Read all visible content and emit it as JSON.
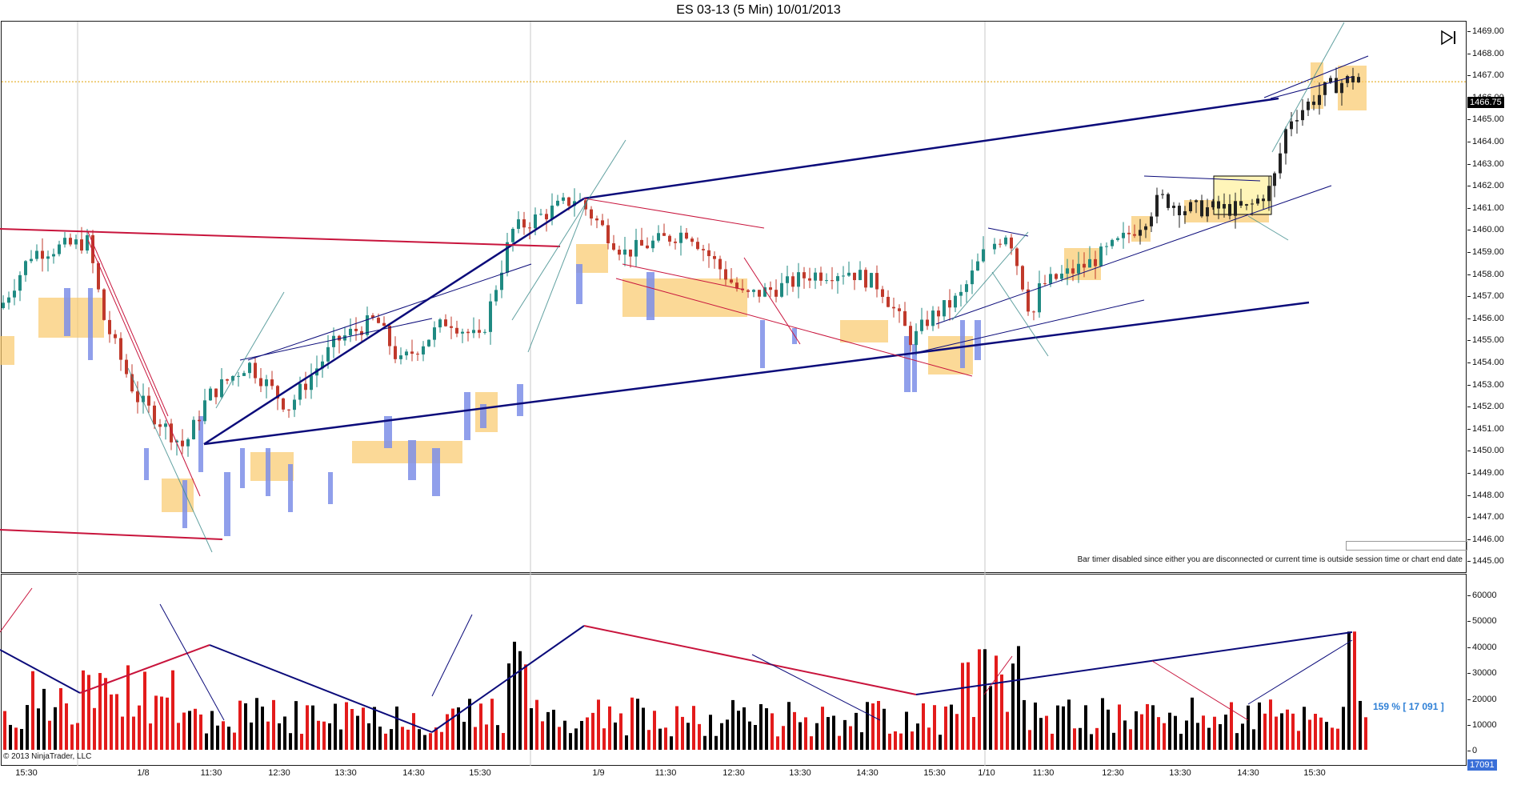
{
  "title": "ES 03-13 (5 Min)  10/01/2013",
  "price_axis": {
    "ticks": [
      "1469.00",
      "1468.00",
      "1467.00",
      "1466.00",
      "1465.00",
      "1464.00",
      "1463.00",
      "1462.00",
      "1461.00",
      "1460.00",
      "1459.00",
      "1458.00",
      "1457.00",
      "1456.00",
      "1455.00",
      "1454.00",
      "1453.00",
      "1452.00",
      "1451.00",
      "1450.00",
      "1449.00",
      "1448.00",
      "1447.00",
      "1446.00",
      "1445.00"
    ],
    "current_price": "1466.75"
  },
  "volume_axis": {
    "ticks": [
      "60000",
      "50000",
      "40000",
      "30000",
      "20000",
      "10000",
      "0"
    ],
    "current_volume": "17091"
  },
  "time_axis": {
    "labels": [
      "15:30",
      "1/8",
      "11:30",
      "12:30",
      "13:30",
      "14:30",
      "15:30",
      "1/9",
      "11:30",
      "12:30",
      "13:30",
      "14:30",
      "15:30",
      "1/10",
      "11:30",
      "12:30",
      "13:30",
      "14:30",
      "15:30"
    ]
  },
  "bar_timer_message": "Bar timer disabled since either you are disconnected or current time is outside session time or chart end date",
  "volume_readout": "159 % [ 17 091 ]",
  "copyright": "© 2013 NinjaTrader, LLC",
  "colors": {
    "up_bar": "#1f8a82",
    "down_bar": "#c0392b",
    "volume_up": "#000000",
    "volume_down": "#e31b1b",
    "trend_blue": "#0b0b7a",
    "trend_red": "#c8143c",
    "zone_orange": "#f9c96b",
    "profile_blue": "#7c8ee8"
  },
  "icons": {
    "play_end": "skip-to-end-icon"
  }
}
